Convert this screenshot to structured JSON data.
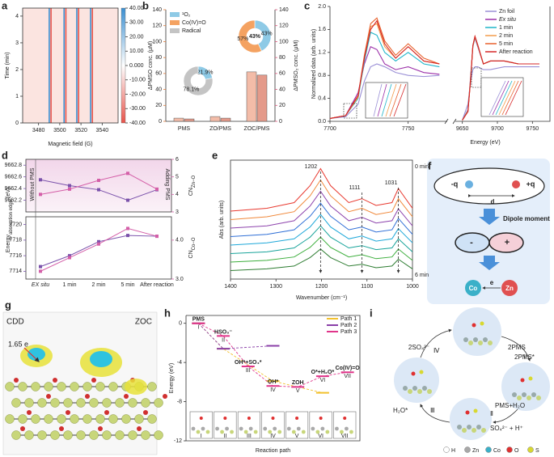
{
  "panel_labels": [
    "a",
    "b",
    "c",
    "d",
    "e",
    "f",
    "g",
    "h",
    "i"
  ],
  "chart_data": [
    {
      "type": "heatmap",
      "xlabel": "Magnetic field (G)",
      "ylabel": "Time (min)",
      "xlim": [
        3465,
        3555
      ],
      "xticks": [
        3480,
        3500,
        3520,
        3540
      ],
      "ylim": [
        0,
        4.3
      ],
      "yticks": [
        0,
        1,
        2,
        3,
        4
      ],
      "peaks": [
        3491,
        3505,
        3517,
        3530
      ],
      "colors": [
        "#3b8fd1",
        "#ffffff",
        "#e8534a"
      ],
      "background": "#fbe4e0",
      "colorbar_lim": [
        -40,
        40
      ],
      "colorbar_ticks": [
        {
          "value": 40,
          "label": "40.00"
        },
        {
          "value": 30,
          "label": "30.00"
        },
        {
          "value": 20,
          "label": "20.00"
        },
        {
          "value": 10,
          "label": "10.00"
        },
        {
          "value": 0,
          "label": "0.000"
        },
        {
          "value": -10,
          "label": "-10.00"
        },
        {
          "value": -20,
          "label": "-20.00"
        },
        {
          "value": -30,
          "label": "-30.00"
        },
        {
          "value": -40,
          "label": "-40.00"
        }
      ]
    },
    {
      "type": "bar",
      "categories": [
        "PMS",
        "ZO/PMS",
        "ZOC/PMS"
      ],
      "ylabel": "ΔPMSO conc. (μM)",
      "y2label": "ΔPMSO₂ conc. (μM)",
      "ylim": [
        0,
        140
      ],
      "yticks": [
        0,
        20,
        40,
        60,
        80,
        100,
        120,
        140
      ],
      "y2lim": [
        0,
        140
      ],
      "y2ticks": [
        0,
        20,
        40,
        60,
        80,
        100,
        120,
        140
      ],
      "axis_colors": [
        "#e07b39",
        "#d9557a"
      ],
      "series": [
        {
          "color": "#f3bca8",
          "values": [
            4,
            6,
            62
          ]
        },
        {
          "color": "#e49a8a",
          "axis": "y2",
          "values": [
            3,
            4,
            58
          ]
        }
      ],
      "legend": [
        {
          "name": "¹O₂",
          "color": "#8ecae6"
        },
        {
          "name": "Co(IV)=O",
          "color": "#f4a261"
        },
        {
          "name": "Radical",
          "color": "#c4c4c4"
        }
      ],
      "pies": [
        {
          "values": [
            43,
            57
          ],
          "labels": [
            "43%",
            "57%"
          ],
          "colors": [
            "#8ecae6",
            "#f4a261"
          ],
          "center_label": "43%"
        },
        {
          "values": [
            21.9,
            78.1
          ],
          "labels": [
            "21.9%",
            "78.1%"
          ],
          "colors": [
            "#8ecae6",
            "#c4c4c4"
          ]
        }
      ]
    },
    {
      "type": "line",
      "ylabel": "Normalized data (arb. units)",
      "xlabel": "Energy (eV)",
      "ylim": [
        0,
        2.0
      ],
      "yticks": [
        {
          "value": 0,
          "label": "0.0"
        },
        {
          "value": 0.4,
          "label": "0.4"
        },
        {
          "value": 0.8,
          "label": "0.8"
        },
        {
          "value": 1.2,
          "label": "1.2"
        },
        {
          "value": 1.6,
          "label": "1.6"
        },
        {
          "value": 2.0,
          "label": "2.0"
        }
      ],
      "segments": [
        {
          "xlim": [
            7700,
            7775
          ],
          "xticks": [
            7700,
            7750
          ],
          "x": [
            7700,
            7710,
            7718,
            7722,
            7726,
            7730,
            7735,
            7742,
            7750,
            7760,
            7770
          ]
        },
        {
          "xlim": [
            9640,
            9775
          ],
          "xticks": [
            9650,
            9700,
            9750
          ],
          "x": [
            9650,
            9658,
            9662,
            9665,
            9668,
            9672,
            9680,
            9690,
            9710,
            9730,
            9760
          ]
        }
      ],
      "series": [
        {
          "name": "Zn foil",
          "color": "#9a8fd6",
          "values": [
            [
              0.05,
              0.08,
              0.3,
              0.7,
              0.95,
              1.0,
              0.95,
              0.85,
              0.8,
              0.78,
              0.8
            ],
            [
              0.02,
              0.3,
              0.7,
              0.9,
              0.95,
              0.95,
              0.9,
              0.9,
              0.95,
              0.95,
              0.95
            ]
          ]
        },
        {
          "name": "Ex situ",
          "color": "#9b2fa8",
          "values": [
            [
              0.05,
              0.1,
              0.5,
              1.0,
              1.3,
              1.25,
              1.0,
              0.9,
              0.95,
              0.85,
              0.82
            ],
            [
              0.02,
              0.2,
              0.8,
              1.3,
              1.45,
              1.3,
              1.0,
              1.05,
              1.05,
              1.0,
              1.0
            ]
          ]
        },
        {
          "name": "1 min",
          "color": "#1fb5c9",
          "values": [
            [
              0.05,
              0.1,
              0.4,
              1.05,
              1.55,
              1.5,
              1.2,
              1.05,
              1.2,
              1.0,
              0.95
            ],
            [
              0.02,
              0.19,
              0.78,
              1.3,
              1.46,
              1.31,
              1.0,
              1.05,
              1.05,
              1.0,
              1.0
            ]
          ]
        },
        {
          "name": "2 min",
          "color": "#f39c4a",
          "values": [
            [
              0.05,
              0.1,
              0.42,
              1.1,
              1.65,
              1.7,
              1.3,
              1.1,
              1.3,
              1.05,
              1.0
            ],
            [
              0.02,
              0.18,
              0.77,
              1.31,
              1.47,
              1.32,
              1.0,
              1.05,
              1.05,
              1.0,
              1.0
            ]
          ]
        },
        {
          "name": "5 min",
          "color": "#e8612c",
          "values": [
            [
              0.05,
              0.1,
              0.45,
              1.15,
              1.7,
              1.8,
              1.4,
              1.15,
              1.35,
              1.1,
              1.0
            ],
            [
              0.02,
              0.17,
              0.76,
              1.32,
              1.48,
              1.33,
              1.0,
              1.05,
              1.05,
              1.0,
              1.0
            ]
          ]
        },
        {
          "name": "After reaction",
          "color": "#d62728",
          "values": [
            [
              0.05,
              0.1,
              0.45,
              1.1,
              1.6,
              1.75,
              1.35,
              1.1,
              1.3,
              1.05,
              1.0
            ],
            [
              0.02,
              0.17,
              0.75,
              1.32,
              1.48,
              1.33,
              1.0,
              1.05,
              1.05,
              1.0,
              1.0
            ]
          ]
        }
      ]
    },
    {
      "type": "line",
      "categories": [
        "EX situ",
        "1 min",
        "2 min",
        "5 min",
        "After reaction"
      ],
      "ylabel": {
        "main": "Energy",
        "sub": "absorption edge",
        "unit": " (eV)"
      },
      "annotations": [
        "Without PMS",
        "Adding PMS"
      ],
      "subplots": [
        {
          "ylim": [
            9662.0,
            9662.9
          ],
          "yticks": [
            9662.2,
            9662.4,
            9662.6,
            9662.8
          ],
          "y2label": {
            "main": "CN",
            "sub": "Zn−O"
          },
          "y2lim": [
            3,
            6
          ],
          "y2ticks": [
            3,
            4,
            5,
            6
          ],
          "series": [
            {
              "color": "#7b52ab",
              "values": [
                9662.55,
                9662.45,
                9662.38,
                9662.2,
                9662.38
              ]
            },
            {
              "color": "#d45fa8",
              "axis": "y2",
              "values": [
                4.0,
                4.3,
                4.8,
                5.2,
                4.3
              ]
            }
          ]
        },
        {
          "ylim": [
            7713,
            7721
          ],
          "yticks": [
            7714,
            7716,
            7718,
            7720
          ],
          "y2label": {
            "main": "CN",
            "sub": "Co−O"
          },
          "y2lim": [
            3,
            4.6
          ],
          "y2ticks": [
            {
              "value": 3,
              "label": "3.0"
            },
            {
              "value": 4,
              "label": "4.0"
            }
          ],
          "series": [
            {
              "color": "#7b52ab",
              "values": [
                7714.6,
                7716.0,
                7717.8,
                7718.6,
                7718.5
              ]
            },
            {
              "color": "#d45fa8",
              "axis": "y2",
              "values": [
                3.2,
                3.55,
                3.9,
                4.3,
                4.1
              ]
            }
          ]
        }
      ]
    },
    {
      "type": "line",
      "xlabel": "Wavenumber (cm⁻¹)",
      "ylabel": "Abs (arb. units)",
      "xlim": [
        1400,
        1000
      ],
      "xticks": [
        1400,
        1300,
        1200,
        1100,
        1000
      ],
      "ylim": [
        0.1,
        2.2
      ],
      "peaks": [
        1202,
        1111,
        1031
      ],
      "annotations": [
        "0 min",
        "6 min"
      ],
      "x": [
        1400,
        1320,
        1260,
        1225,
        1202,
        1180,
        1140,
        1111,
        1080,
        1045,
        1031,
        1000
      ],
      "series": [
        {
          "color": "#e8392f",
          "values": [
            1.3,
            1.35,
            1.45,
            1.75,
            2.05,
            1.75,
            1.45,
            1.52,
            1.4,
            1.45,
            1.7,
            1.35
          ]
        },
        {
          "color": "#f0883a",
          "values": [
            1.15,
            1.2,
            1.29,
            1.57,
            1.85,
            1.57,
            1.29,
            1.35,
            1.24,
            1.29,
            1.52,
            1.2
          ]
        },
        {
          "color": "#8e44ad",
          "values": [
            1.0,
            1.04,
            1.13,
            1.39,
            1.65,
            1.39,
            1.13,
            1.19,
            1.09,
            1.13,
            1.34,
            1.04
          ]
        },
        {
          "color": "#2f6fd6",
          "values": [
            0.85,
            0.89,
            0.97,
            1.21,
            1.44,
            1.21,
            0.97,
            1.02,
            0.93,
            0.97,
            1.17,
            0.89
          ]
        },
        {
          "color": "#1fa8d9",
          "values": [
            0.7,
            0.74,
            0.81,
            1.02,
            1.24,
            1.02,
            0.81,
            0.86,
            0.77,
            0.81,
            0.99,
            0.74
          ]
        },
        {
          "color": "#17a39a",
          "values": [
            0.55,
            0.58,
            0.65,
            0.84,
            1.04,
            0.84,
            0.65,
            0.69,
            0.62,
            0.65,
            0.81,
            0.58
          ]
        },
        {
          "color": "#3cae3c",
          "values": [
            0.4,
            0.43,
            0.49,
            0.66,
            0.84,
            0.66,
            0.49,
            0.53,
            0.46,
            0.49,
            0.63,
            0.43
          ]
        },
        {
          "color": "#2e7d32",
          "values": [
            0.25,
            0.28,
            0.33,
            0.48,
            0.63,
            0.48,
            0.33,
            0.36,
            0.3,
            0.33,
            0.45,
            0.28
          ]
        }
      ]
    },
    {
      "type": "line",
      "categories": [
        "I",
        "II",
        "III",
        "IV",
        "V",
        "VI",
        "VII"
      ],
      "ylabel": "Energy (eV)",
      "xlabel": "Reaction path",
      "xlim": [
        0.5,
        7.5
      ],
      "ylim": [
        -12,
        0.8
      ],
      "yticks": [
        0,
        -4,
        -8,
        -12
      ],
      "state_labels": [
        "PMS",
        "HSO₅⁻",
        "OH*+SO₄*",
        "OH*",
        "ZOH",
        "O*+H₂O*",
        "Co(IV)=O"
      ],
      "series": [
        {
          "name": "Path 1",
          "color": "#f2c12e",
          "x": [
            1,
            2,
            4,
            6
          ],
          "values": [
            0,
            -2.6,
            -5.9,
            -7.1
          ]
        },
        {
          "name": "Path 2",
          "color": "#8a3fa8",
          "x": [
            1,
            2,
            4
          ],
          "values": [
            0,
            -2.6,
            -2.3
          ]
        },
        {
          "name": "Path 3",
          "color": "#e0358a",
          "x": [
            1,
            2,
            3,
            4,
            5,
            6,
            7
          ],
          "values": [
            0,
            -1.3,
            -4.4,
            -6.4,
            -6.5,
            -5.4,
            -5.0
          ]
        }
      ]
    }
  ],
  "diagram_f": {
    "charges": [
      "-q",
      "+q"
    ],
    "distance": "d",
    "title": "Dipole moment",
    "poles": [
      "-",
      "+"
    ],
    "atoms": [
      "Co",
      "Zn"
    ],
    "electron": "e"
  },
  "diagram_g": {
    "title": "CDD",
    "material": "ZOC",
    "charge": "1.65 e"
  },
  "diagram_i": {
    "species": [
      "2SO₄²⁻",
      "2PMS",
      "2PMS*",
      "PMS+H₂O",
      "SO₄²⁻ + H⁺",
      "H₂O*"
    ],
    "steps": [
      "Ⅰ",
      "Ⅱ",
      "Ⅲ",
      "Ⅳ"
    ],
    "legend": [
      {
        "name": "H",
        "color": "#ffffff"
      },
      {
        "name": "Zn",
        "color": "#a8a8a8"
      },
      {
        "name": "Co",
        "color": "#3ab0c8"
      },
      {
        "name": "O",
        "color": "#e03030"
      },
      {
        "name": "S",
        "color": "#d8d830"
      }
    ]
  }
}
